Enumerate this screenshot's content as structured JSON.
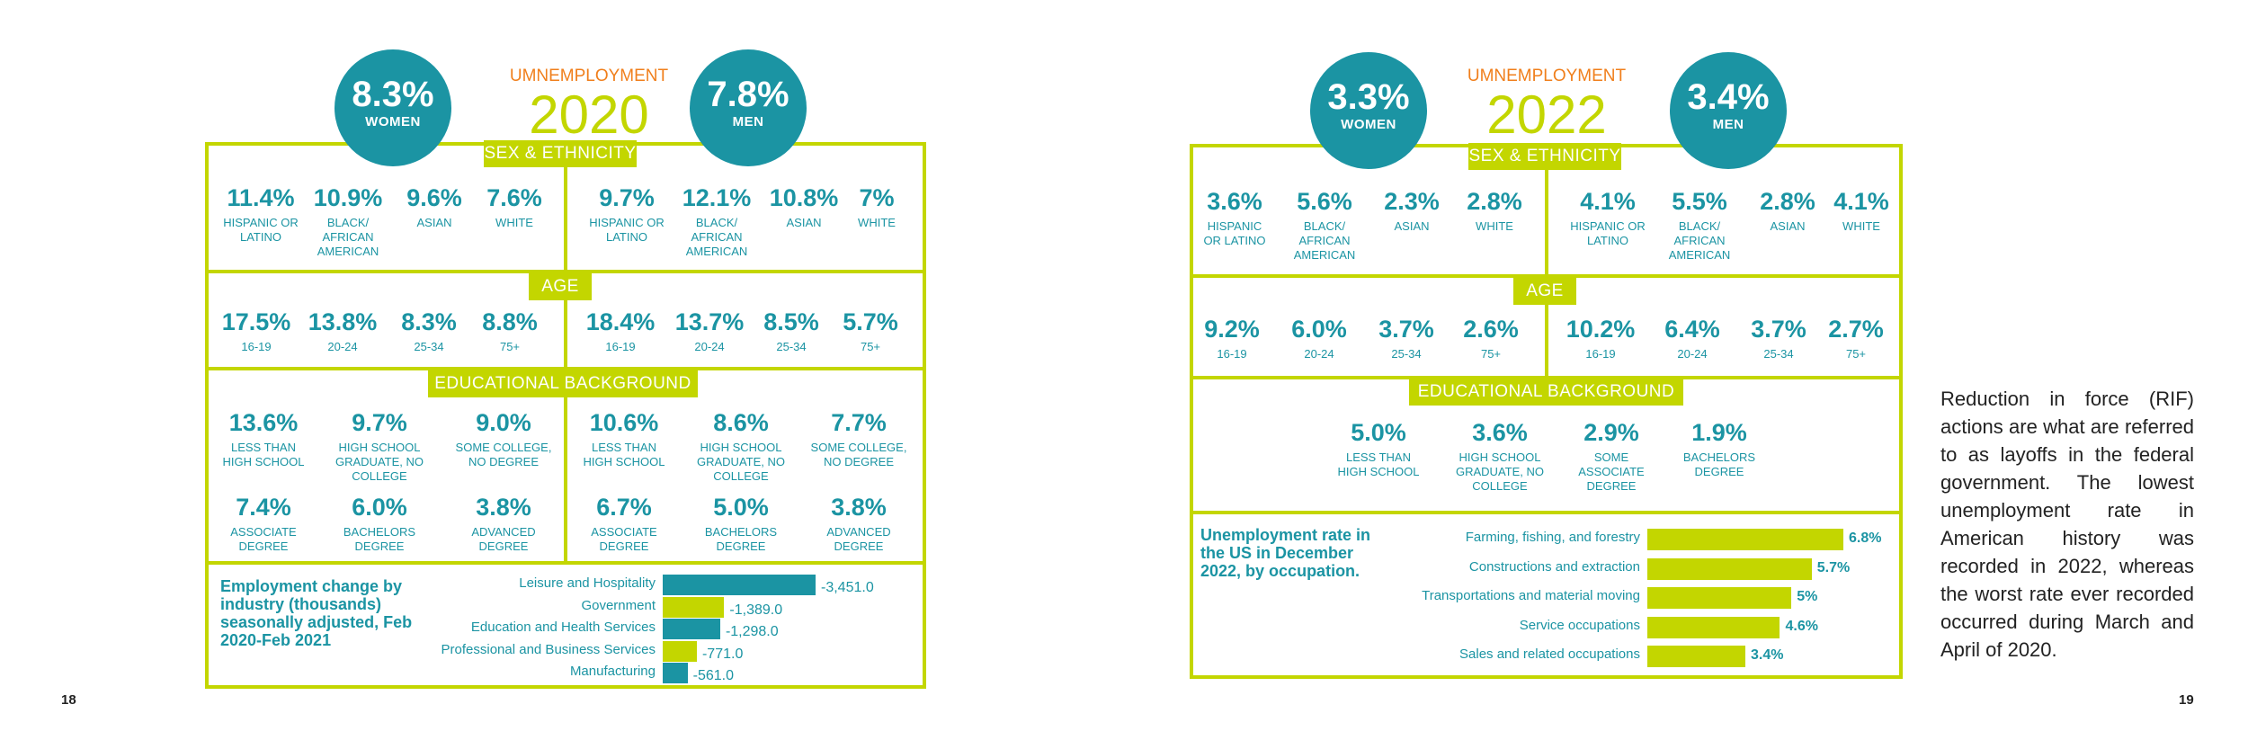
{
  "left": {
    "page_number": "18",
    "unemployment_label": "UMNEMPLOYMENT",
    "year": "2020",
    "women": {
      "value": "8.3%",
      "label": "WOMEN"
    },
    "men": {
      "value": "7.8%",
      "label": "MEN"
    },
    "section_sex": "SEX & ETHNICITY",
    "section_age": "AGE",
    "section_edu": "EDUCATIONAL BACKGROUND",
    "sex_women": [
      {
        "v": "11.4%",
        "l": "HISPANIC OR LATINO"
      },
      {
        "v": "10.9%",
        "l": "BLACK/ AFRICAN AMERICAN"
      },
      {
        "v": "9.6%",
        "l": "ASIAN"
      },
      {
        "v": "7.6%",
        "l": "WHITE"
      }
    ],
    "sex_men": [
      {
        "v": "9.7%",
        "l": "HISPANIC OR LATINO"
      },
      {
        "v": "12.1%",
        "l": "BLACK/ AFRICAN AMERICAN"
      },
      {
        "v": "10.8%",
        "l": "ASIAN"
      },
      {
        "v": "7%",
        "l": "WHITE"
      }
    ],
    "age_women": [
      {
        "v": "17.5%",
        "l": "16-19"
      },
      {
        "v": "13.8%",
        "l": "20-24"
      },
      {
        "v": "8.3%",
        "l": "25-34"
      },
      {
        "v": "8.8%",
        "l": "75+"
      }
    ],
    "age_men": [
      {
        "v": "18.4%",
        "l": "16-19"
      },
      {
        "v": "13.7%",
        "l": "20-24"
      },
      {
        "v": "8.5%",
        "l": "25-34"
      },
      {
        "v": "5.7%",
        "l": "75+"
      }
    ],
    "edu_women": [
      {
        "v": "13.6%",
        "l": "LESS THAN HIGH SCHOOL"
      },
      {
        "v": "9.7%",
        "l": "HIGH SCHOOL GRADUATE, NO COLLEGE"
      },
      {
        "v": "9.0%",
        "l": "SOME COLLEGE, NO DEGREE"
      },
      {
        "v": "7.4%",
        "l": "ASSOCIATE DEGREE"
      },
      {
        "v": "6.0%",
        "l": "BACHELORS DEGREE"
      },
      {
        "v": "3.8%",
        "l": "ADVANCED DEGREE"
      }
    ],
    "edu_men": [
      {
        "v": "10.6%",
        "l": "LESS THAN HIGH SCHOOL"
      },
      {
        "v": "8.6%",
        "l": "HIGH SCHOOL GRADUATE, NO COLLEGE"
      },
      {
        "v": "7.7%",
        "l": "SOME COLLEGE, NO DEGREE"
      },
      {
        "v": "6.7%",
        "l": "ASSOCIATE DEGREE"
      },
      {
        "v": "5.0%",
        "l": "BACHELORS DEGREE"
      },
      {
        "v": "3.8%",
        "l": "ADVANCED DEGREE"
      }
    ]
  },
  "right": {
    "page_number": "19",
    "unemployment_label": "UMNEMPLOYMENT",
    "year": "2022",
    "women": {
      "value": "3.3%",
      "label": "WOMEN"
    },
    "men": {
      "value": "3.4%",
      "label": "MEN"
    },
    "section_sex": "SEX & ETHNICITY",
    "section_age": "AGE",
    "section_edu": "EDUCATIONAL BACKGROUND",
    "sex_women": [
      {
        "v": "3.6%",
        "l": "HISPANIC OR LATINO"
      },
      {
        "v": "5.6%",
        "l": "BLACK/ AFRICAN AMERICAN"
      },
      {
        "v": "2.3%",
        "l": "ASIAN"
      },
      {
        "v": "2.8%",
        "l": "WHITE"
      }
    ],
    "sex_men": [
      {
        "v": "4.1%",
        "l": "HISPANIC OR LATINO"
      },
      {
        "v": "5.5%",
        "l": "BLACK/ AFRICAN AMERICAN"
      },
      {
        "v": "2.8%",
        "l": "ASIAN"
      },
      {
        "v": "4.1%",
        "l": "WHITE"
      }
    ],
    "age_women": [
      {
        "v": "9.2%",
        "l": "16-19"
      },
      {
        "v": "6.0%",
        "l": "20-24"
      },
      {
        "v": "3.7%",
        "l": "25-34"
      },
      {
        "v": "2.6%",
        "l": "75+"
      }
    ],
    "age_men": [
      {
        "v": "10.2%",
        "l": "16-19"
      },
      {
        "v": "6.4%",
        "l": "20-24"
      },
      {
        "v": "3.7%",
        "l": "25-34"
      },
      {
        "v": "2.7%",
        "l": "75+"
      }
    ],
    "edu": [
      {
        "v": "5.0%",
        "l": "LESS THAN HIGH SCHOOL"
      },
      {
        "v": "3.6%",
        "l": "HIGH SCHOOL GRADUATE, NO COLLEGE"
      },
      {
        "v": "2.9%",
        "l": "SOME ASSOCIATE DEGREE"
      },
      {
        "v": "1.9%",
        "l": "BACHELORS DEGREE"
      }
    ]
  },
  "side_text": "Reduction in force (RIF) actions are what are referred to as layoffs in the federal government. The lowest unemployment rate in American history was recorded in 2022, whereas the worst rate ever recorded occurred during March and April of 2020.",
  "colors": {
    "teal": "#1b94a3",
    "lime": "#c3d600",
    "orange": "#f07f1c"
  },
  "chart_data": [
    {
      "type": "bar",
      "orientation": "horizontal",
      "title": "Employment change by industry (thousands) seasonally adjusted, Feb 2020-Feb 2021",
      "categories": [
        "Leisure and Hospitality",
        "Government",
        "Education and Health Services",
        "Professional and Business Services",
        "Manufacturing"
      ],
      "values": [
        -3451.0,
        -1389.0,
        -1298.0,
        -771.0,
        -561.0
      ],
      "value_labels": [
        "-3,451.0",
        "-1,389.0",
        "-1,298.0",
        "-771.0",
        "-561.0"
      ],
      "bar_colors": [
        "#1b94a3",
        "#c3d600",
        "#1b94a3",
        "#c3d600",
        "#1b94a3"
      ],
      "xlim": [
        -3451.0,
        0
      ]
    },
    {
      "type": "bar",
      "orientation": "horizontal",
      "title": "Unemployment rate in the US in December 2022, by occupation.",
      "categories": [
        "Farming, fishing, and forestry",
        "Constructions and extraction",
        "Transportations and material moving",
        "Service occupations",
        "Sales and related occupations"
      ],
      "values": [
        6.8,
        5.7,
        5,
        4.6,
        3.4
      ],
      "value_labels": [
        "6.8%",
        "5.7%",
        "5%",
        "4.6%",
        "3.4%"
      ],
      "bar_colors": [
        "#c3d600",
        "#c3d600",
        "#c3d600",
        "#c3d600",
        "#c3d600"
      ],
      "xlim": [
        0,
        6.8
      ]
    }
  ]
}
